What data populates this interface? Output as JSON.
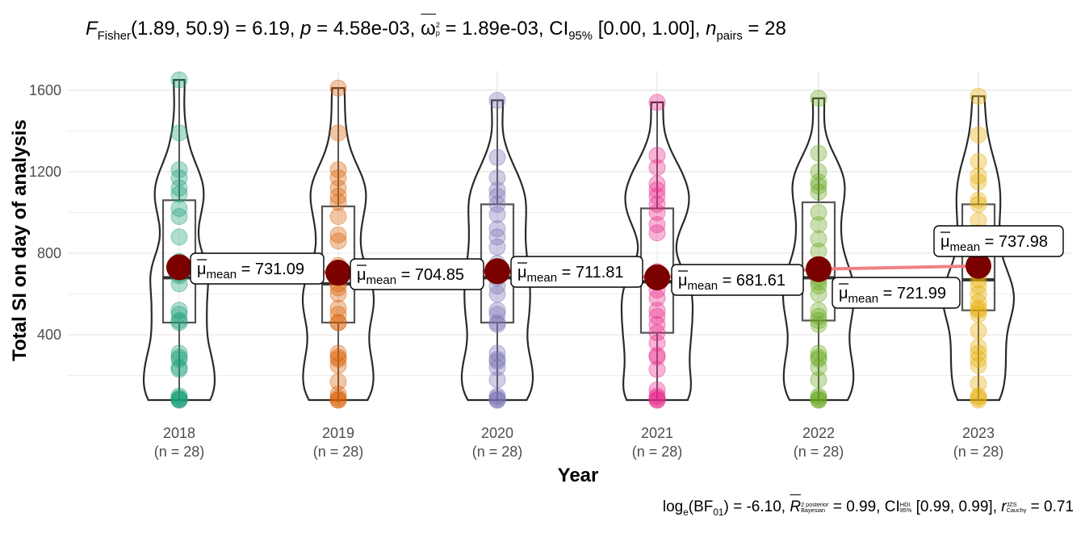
{
  "subtitle": {
    "f_sym": "F",
    "f_sub": "Fisher",
    "f_args": "(1.89, 50.9) = 6.19, ",
    "p_sym": "p",
    "p_val": " = 4.58e-03, ",
    "omega_sym": "ω",
    "omega_sup": "2",
    "omega_sub": "p",
    "omega_val": " = 1.89e-03, ",
    "ci_sym": "CI",
    "ci_sub": "95%",
    "ci_val": " [0.00, 1.00], ",
    "n_sym": "n",
    "n_sub": "pairs",
    "n_val": " = 28"
  },
  "caption": {
    "log_sym": "log",
    "log_sub": "e",
    "bf_text": "(BF",
    "bf_sub": "01",
    "bf_val": ") = -6.10, ",
    "r_sym": "R",
    "r_sup_pre": "2",
    "r_sup": "posterior",
    "r_sub": "Bayesian",
    "r_val": " = 0.99, ",
    "ci_sym": "CI",
    "ci_sup": "HDI",
    "ci_sub": "95%",
    "ci_val": " [0.99, 0.99], ",
    "rc_sym": "r",
    "rc_sup": "JZS",
    "rc_sub": "Cauchy",
    "rc_val": " = 0.71"
  },
  "chart_data": {
    "type": "violin-box-scatter",
    "xlabel": "Year",
    "ylabel": "Total SI on day of analysis",
    "ylim": [
      0,
      1660
    ],
    "yticks": [
      400,
      800,
      1200,
      1600
    ],
    "grid": true,
    "mean_label_prefix": "μ",
    "mean_label_sub": "mean",
    "mean_color": "#7B0000",
    "mean_line_color": "#F08080",
    "groups": [
      {
        "category": "2018",
        "n_label": "(n = 28)",
        "color": "#1B9E77",
        "mean": 731.09,
        "mean_label": " = 731.09",
        "median": 680,
        "q1": 460,
        "q3": 1060,
        "min": 80,
        "max": 1650,
        "points": [
          1650,
          1390,
          1210,
          1170,
          1120,
          1090,
          1020,
          980,
          880,
          760,
          720,
          700,
          650,
          520,
          500,
          470,
          460,
          310,
          290,
          280,
          240,
          230,
          100,
          90,
          85,
          80,
          80,
          690
        ]
      },
      {
        "category": "2019",
        "n_label": "(n = 28)",
        "color": "#D95F02",
        "mean": 704.85,
        "mean_label": " = 704.85",
        "median": 650,
        "q1": 460,
        "q3": 1030,
        "min": 80,
        "max": 1610,
        "points": [
          1610,
          1390,
          1210,
          1170,
          1120,
          1080,
          1050,
          980,
          890,
          860,
          740,
          690,
          650,
          530,
          500,
          460,
          460,
          310,
          290,
          280,
          250,
          170,
          110,
          90,
          80,
          80,
          630,
          600
        ]
      },
      {
        "category": "2020",
        "n_label": "(n = 28)",
        "color": "#7570B3",
        "mean": 711.81,
        "mean_label": " = 711.81",
        "median": 680,
        "q1": 460,
        "q3": 1040,
        "min": 80,
        "max": 1550,
        "points": [
          1550,
          1270,
          1170,
          1110,
          1080,
          1040,
          990,
          920,
          880,
          830,
          750,
          720,
          680,
          520,
          500,
          460,
          450,
          310,
          280,
          270,
          240,
          180,
          100,
          90,
          80,
          80,
          640,
          600
        ]
      },
      {
        "category": "2021",
        "n_label": "(n = 28)",
        "color": "#E7298A",
        "mean": 681.61,
        "mean_label": " = 681.61",
        "median": 660,
        "q1": 410,
        "q3": 1020,
        "min": 80,
        "max": 1540,
        "points": [
          1540,
          1280,
          1220,
          1140,
          1110,
          1080,
          1040,
          1000,
          940,
          900,
          710,
          680,
          660,
          520,
          490,
          450,
          410,
          360,
          300,
          290,
          230,
          130,
          100,
          90,
          80,
          80,
          620,
          580
        ]
      },
      {
        "category": "2022",
        "n_label": "(n = 28)",
        "color": "#66A61E",
        "mean": 721.99,
        "mean_label": " = 721.99",
        "median": 680,
        "q1": 470,
        "q3": 1050,
        "min": 80,
        "max": 1560,
        "points": [
          1560,
          1290,
          1200,
          1150,
          1130,
          1100,
          1000,
          940,
          870,
          810,
          720,
          680,
          660,
          520,
          490,
          450,
          470,
          310,
          290,
          280,
          240,
          180,
          100,
          90,
          80,
          80,
          640,
          600
        ]
      },
      {
        "category": "2023",
        "n_label": "(n = 28)",
        "color": "#E6AB02",
        "mean": 737.98,
        "mean_label": " = 737.98",
        "median": 670,
        "q1": 520,
        "q3": 1040,
        "min": 80,
        "max": 1570,
        "points": [
          1570,
          1380,
          1250,
          1180,
          1150,
          1060,
          1040,
          960,
          900,
          840,
          750,
          700,
          670,
          560,
          530,
          520,
          500,
          420,
          340,
          310,
          280,
          250,
          160,
          100,
          90,
          80,
          640,
          600
        ]
      }
    ]
  }
}
